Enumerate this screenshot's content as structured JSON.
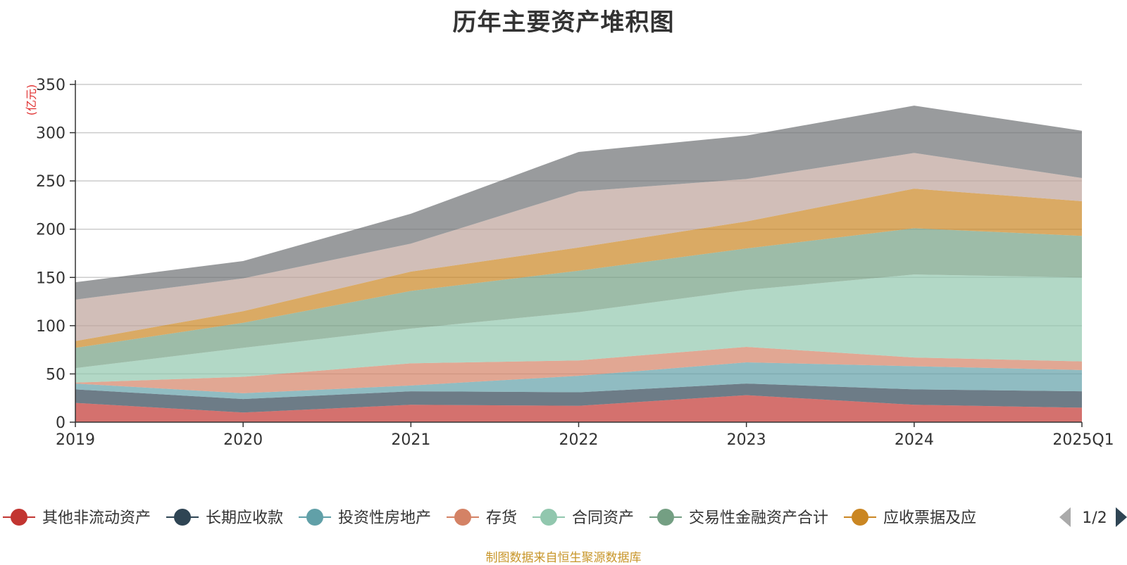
{
  "chart_data": {
    "type": "area",
    "stacked": true,
    "title": "历年主要资产堆积图",
    "unit_label": "(亿元)",
    "categories": [
      "2019",
      "2020",
      "2021",
      "2022",
      "2023",
      "2024",
      "2025Q1"
    ],
    "y_ticks": [
      "0",
      "50",
      "100",
      "150",
      "200",
      "250",
      "300",
      "350"
    ],
    "ylim": [
      0,
      350
    ],
    "grid": true,
    "series": [
      {
        "name": "其他非流动资产",
        "color": "#c23531",
        "values": [
          20,
          10,
          18,
          17,
          28,
          18,
          15
        ]
      },
      {
        "name": "长期应收款",
        "color": "#2f4554",
        "values": [
          14,
          14,
          14,
          14,
          12,
          16,
          17
        ]
      },
      {
        "name": "投资性房地产",
        "color": "#61a0a8",
        "values": [
          6,
          6,
          6,
          17,
          22,
          24,
          22
        ]
      },
      {
        "name": "存货",
        "color": "#d48265",
        "values": [
          1,
          17,
          23,
          16,
          16,
          9,
          9
        ]
      },
      {
        "name": "合同资产",
        "color": "#91c7ae",
        "values": [
          15,
          30,
          36,
          50,
          59,
          86,
          87
        ]
      },
      {
        "name": "交易性金融资产合计",
        "color": "#749f83",
        "values": [
          21,
          26,
          39,
          43,
          43,
          48,
          43
        ]
      },
      {
        "name": "应收票据及应",
        "color": "#ca8622",
        "values": [
          7,
          12,
          20,
          24,
          28,
          41,
          36
        ]
      },
      {
        "name": "",
        "color": "#bda29a",
        "values": [
          43,
          34,
          29,
          58,
          44,
          37,
          24
        ]
      },
      {
        "name": "",
        "color": "#6e7074",
        "values": [
          18,
          18,
          31,
          41,
          45,
          49,
          49
        ]
      }
    ],
    "legend": {
      "position": "bottom",
      "items": [
        "其他非流动资产",
        "长期应收款",
        "投资性房地产",
        "存货",
        "合同资产",
        "交易性金融资产合计",
        "应收票据及应"
      ],
      "page_indicator": "1/2"
    }
  },
  "footer_note": "制图数据来自恒生聚源数据库"
}
